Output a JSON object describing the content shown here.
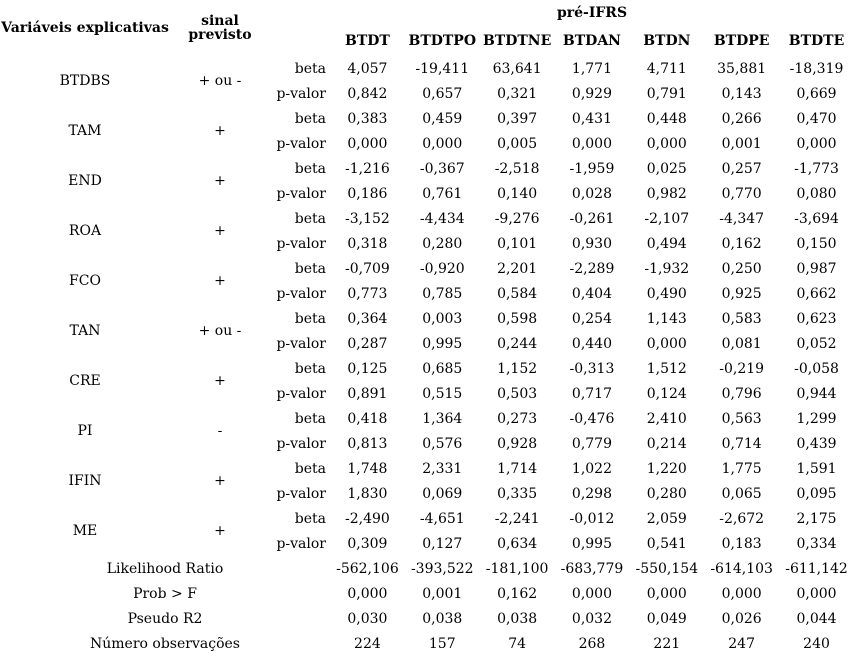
{
  "header": {
    "variables_label": "Variáveis explicativas",
    "sinal_label": "sinal previsto",
    "group_title": "pré-IFRS"
  },
  "labels": {
    "beta": "beta",
    "pvalor": "p-valor"
  },
  "columns": [
    "BTDT",
    "BTDTPO",
    "BTDTNE",
    "BTDAN",
    "BTDN",
    "BTDPE",
    "BTDTE"
  ],
  "variables": [
    {
      "name": "BTDBS",
      "sinal": "+ ou -",
      "beta": [
        "4,057",
        "-19,411",
        "63,641",
        "1,771",
        "4,711",
        "35,881",
        "-18,319"
      ],
      "pvalor": [
        "0,842",
        "0,657",
        "0,321",
        "0,929",
        "0,791",
        "0,143",
        "0,669"
      ]
    },
    {
      "name": "TAM",
      "sinal": "+",
      "beta": [
        "0,383",
        "0,459",
        "0,397",
        "0,431",
        "0,448",
        "0,266",
        "0,470"
      ],
      "pvalor": [
        "0,000",
        "0,000",
        "0,005",
        "0,000",
        "0,000",
        "0,001",
        "0,000"
      ]
    },
    {
      "name": "END",
      "sinal": "+",
      "beta": [
        "-1,216",
        "-0,367",
        "-2,518",
        "-1,959",
        "0,025",
        "0,257",
        "-1,773"
      ],
      "pvalor": [
        "0,186",
        "0,761",
        "0,140",
        "0,028",
        "0,982",
        "0,770",
        "0,080"
      ]
    },
    {
      "name": "ROA",
      "sinal": "+",
      "beta": [
        "-3,152",
        "-4,434",
        "-9,276",
        "-0,261",
        "-2,107",
        "-4,347",
        "-3,694"
      ],
      "pvalor": [
        "0,318",
        "0,280",
        "0,101",
        "0,930",
        "0,494",
        "0,162",
        "0,150"
      ]
    },
    {
      "name": "FCO",
      "sinal": "+",
      "beta": [
        "-0,709",
        "-0,920",
        "2,201",
        "-2,289",
        "-1,932",
        "0,250",
        "0,987"
      ],
      "pvalor": [
        "0,773",
        "0,785",
        "0,584",
        "0,404",
        "0,490",
        "0,925",
        "0,662"
      ]
    },
    {
      "name": "TAN",
      "sinal": "+ ou -",
      "beta": [
        "0,364",
        "0,003",
        "0,598",
        "0,254",
        "1,143",
        "0,583",
        "0,623"
      ],
      "pvalor": [
        "0,287",
        "0,995",
        "0,244",
        "0,440",
        "0,000",
        "0,081",
        "0,052"
      ]
    },
    {
      "name": "CRE",
      "sinal": "+",
      "beta": [
        "0,125",
        "0,685",
        "1,152",
        "-0,313",
        "1,512",
        "-0,219",
        "-0,058"
      ],
      "pvalor": [
        "0,891",
        "0,515",
        "0,503",
        "0,717",
        "0,124",
        "0,796",
        "0,944"
      ]
    },
    {
      "name": "PI",
      "sinal": "-",
      "beta": [
        "0,418",
        "1,364",
        "0,273",
        "-0,476",
        "2,410",
        "0,563",
        "1,299"
      ],
      "pvalor": [
        "0,813",
        "0,576",
        "0,928",
        "0,779",
        "0,214",
        "0,714",
        "0,439"
      ]
    },
    {
      "name": "IFIN",
      "sinal": "+",
      "beta": [
        "1,748",
        "2,331",
        "1,714",
        "1,022",
        "1,220",
        "1,775",
        "1,591"
      ],
      "pvalor": [
        "1,830",
        "0,069",
        "0,335",
        "0,298",
        "0,280",
        "0,065",
        "0,095"
      ]
    },
    {
      "name": "ME",
      "sinal": "+",
      "beta": [
        "-2,490",
        "-4,651",
        "-2,241",
        "-0,012",
        "2,059",
        "-2,672",
        "2,175"
      ],
      "pvalor": [
        "0,309",
        "0,127",
        "0,634",
        "0,995",
        "0,541",
        "0,183",
        "0,334"
      ]
    }
  ],
  "footer": [
    {
      "label": "Likelihood Ratio",
      "values": [
        "-562,106",
        "-393,522",
        "-181,100",
        "-683,779",
        "-550,154",
        "-614,103",
        "-611,142"
      ]
    },
    {
      "label": "Prob > F",
      "values": [
        "0,000",
        "0,001",
        "0,162",
        "0,000",
        "0,000",
        "0,000",
        "0,000"
      ]
    },
    {
      "label": "Pseudo R2",
      "values": [
        "0,030",
        "0,038",
        "0,038",
        "0,032",
        "0,049",
        "0,026",
        "0,044"
      ]
    },
    {
      "label": "Número observações",
      "values": [
        "224",
        "157",
        "74",
        "268",
        "221",
        "247",
        "240"
      ]
    }
  ]
}
